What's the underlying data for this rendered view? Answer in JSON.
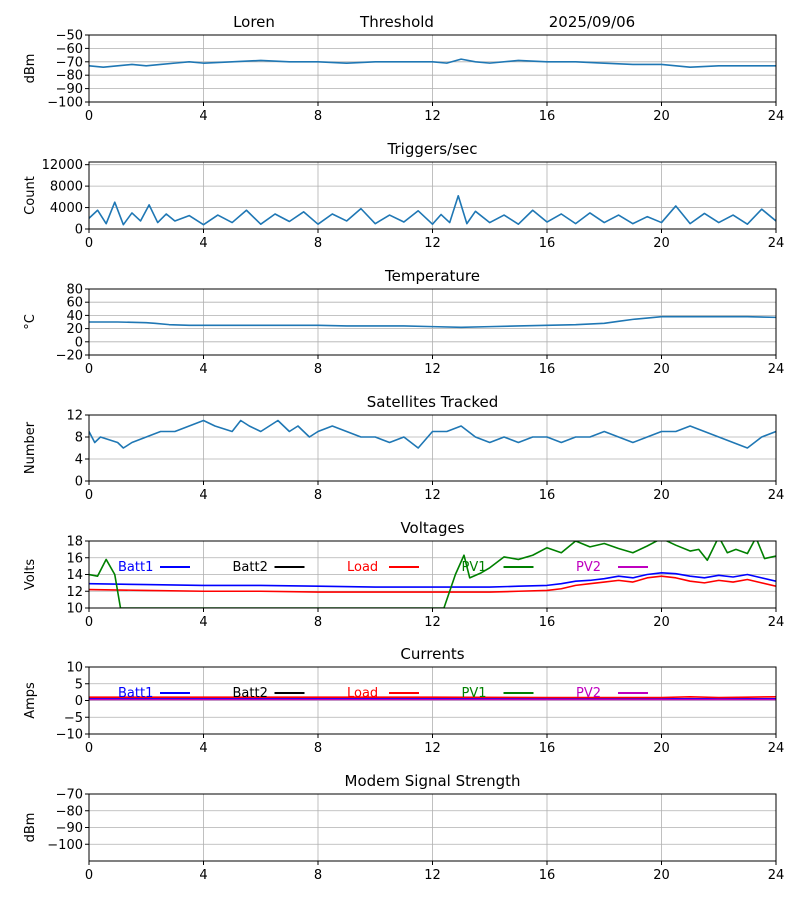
{
  "header": {
    "station": "Loren",
    "mode": "Threshold",
    "date": "2025/09/06"
  },
  "legend_labels": [
    "Batt1",
    "Batt2",
    "Load",
    "PV1",
    "PV2"
  ],
  "colors": {
    "default_line": "#1f77b4",
    "batt1": "#0000ff",
    "batt2": "#000000",
    "load": "#ff0000",
    "pv1": "#008000",
    "pv2": "#bf00bf",
    "grid": "#b0b0b0"
  },
  "chart_data": [
    {
      "id": "threshold",
      "type": "line",
      "title": "",
      "ylabel": "dBm",
      "xlim": [
        0,
        24
      ],
      "xticks": [
        "0",
        "4",
        "8",
        "12",
        "16",
        "20",
        "24"
      ],
      "ylim": [
        -100,
        -50
      ],
      "yticks": [
        -100,
        -90,
        -80,
        -70,
        -60,
        -50
      ],
      "grid": true,
      "series": [
        {
          "color": "#1f77b4",
          "x": [
            0,
            0.5,
            1,
            1.5,
            2,
            2.5,
            3,
            3.5,
            4,
            5,
            6,
            7,
            8,
            9,
            10,
            11,
            12,
            12.5,
            13,
            13.5,
            14,
            15,
            16,
            17,
            18,
            19,
            20,
            21,
            22,
            23,
            24
          ],
          "y": [
            -73,
            -74,
            -73,
            -72,
            -73,
            -72,
            -71,
            -70,
            -71,
            -70,
            -69,
            -70,
            -70,
            -71,
            -70,
            -70,
            -70,
            -71,
            -68,
            -70,
            -71,
            -69,
            -70,
            -70,
            -71,
            -72,
            -72,
            -74,
            -73,
            -73,
            -73
          ]
        }
      ]
    },
    {
      "id": "triggers",
      "type": "line",
      "title": "Triggers/sec",
      "ylabel": "Count",
      "xlim": [
        0,
        24
      ],
      "xticks": [
        "0",
        "4",
        "8",
        "12",
        "16",
        "20",
        "24"
      ],
      "ylim": [
        0,
        12500
      ],
      "yticks": [
        0,
        4000,
        8000,
        12000
      ],
      "grid": true,
      "series": [
        {
          "color": "#1f77b4",
          "x": [
            0,
            0.3,
            0.6,
            0.9,
            1.2,
            1.5,
            1.8,
            2.1,
            2.4,
            2.7,
            3,
            3.5,
            4,
            4.5,
            5,
            5.5,
            6,
            6.5,
            7,
            7.5,
            8,
            8.5,
            9,
            9.5,
            10,
            10.5,
            11,
            11.5,
            12,
            12.3,
            12.6,
            12.9,
            13.2,
            13.5,
            14,
            14.5,
            15,
            15.5,
            16,
            16.5,
            17,
            17.5,
            18,
            18.5,
            19,
            19.5,
            20,
            20.5,
            21,
            21.5,
            22,
            22.5,
            23,
            23.5,
            24
          ],
          "y": [
            2000,
            3500,
            1000,
            5000,
            800,
            3000,
            1500,
            4500,
            1200,
            2800,
            1500,
            2500,
            800,
            2600,
            1200,
            3500,
            900,
            2800,
            1400,
            3200,
            900,
            2800,
            1500,
            3800,
            1000,
            2600,
            1300,
            3400,
            900,
            2700,
            1200,
            6200,
            1000,
            3300,
            1200,
            2600,
            900,
            3500,
            1300,
            2800,
            1000,
            3000,
            1200,
            2600,
            1000,
            2300,
            1200,
            4300,
            1000,
            2900,
            1200,
            2600,
            900,
            3700,
            1500
          ]
        }
      ]
    },
    {
      "id": "temperature",
      "type": "line",
      "title": "Temperature",
      "ylabel": "°C",
      "xlim": [
        0,
        24
      ],
      "xticks": [
        "0",
        "4",
        "8",
        "12",
        "16",
        "20",
        "24"
      ],
      "ylim": [
        -20,
        80
      ],
      "yticks": [
        -20,
        0,
        20,
        40,
        60,
        80
      ],
      "grid": true,
      "series": [
        {
          "color": "#1f77b4",
          "x": [
            0,
            1,
            2,
            2.3,
            2.8,
            3.5,
            4,
            6,
            8,
            9,
            10,
            11,
            12,
            13,
            14,
            15,
            16,
            17,
            18,
            18.5,
            19,
            19.5,
            20,
            21,
            22,
            23,
            24
          ],
          "y": [
            30,
            30,
            29,
            28,
            26,
            25,
            25,
            25,
            25,
            24,
            24,
            24,
            23,
            22,
            23,
            24,
            25,
            26,
            28,
            31,
            34,
            36,
            38,
            38,
            38,
            38,
            37
          ]
        }
      ]
    },
    {
      "id": "satellites",
      "type": "line",
      "title": "Satellites Tracked",
      "ylabel": "Number",
      "xlim": [
        0,
        24
      ],
      "xticks": [
        "0",
        "4",
        "8",
        "12",
        "16",
        "20",
        "24"
      ],
      "ylim": [
        0,
        12
      ],
      "yticks": [
        0,
        4,
        8,
        12
      ],
      "grid": true,
      "series": [
        {
          "color": "#1f77b4",
          "x": [
            0,
            0.2,
            0.4,
            1,
            1.2,
            1.5,
            2,
            2.5,
            3,
            3.5,
            4,
            4.4,
            5,
            5.3,
            5.6,
            6,
            6.3,
            6.6,
            7,
            7.3,
            7.7,
            8,
            8.5,
            9,
            9.5,
            10,
            10.5,
            11,
            11.5,
            12,
            12.5,
            13,
            13.5,
            14,
            14.5,
            15,
            15.5,
            16,
            16.5,
            17,
            17.5,
            18,
            18.5,
            19,
            19.5,
            20,
            20.5,
            21,
            21.5,
            22,
            22.5,
            23,
            23.5,
            24
          ],
          "y": [
            9,
            7,
            8,
            7,
            6,
            7,
            8,
            9,
            9,
            10,
            11,
            10,
            9,
            11,
            10,
            9,
            10,
            11,
            9,
            10,
            8,
            9,
            10,
            9,
            8,
            8,
            7,
            8,
            6,
            9,
            9,
            10,
            8,
            7,
            8,
            7,
            8,
            8,
            7,
            8,
            8,
            9,
            8,
            7,
            8,
            9,
            9,
            10,
            9,
            8,
            7,
            6,
            8,
            9
          ]
        }
      ]
    },
    {
      "id": "voltages",
      "type": "line",
      "title": "Voltages",
      "ylabel": "Volts",
      "xlim": [
        0,
        24
      ],
      "xticks": [
        "0",
        "4",
        "8",
        "12",
        "16",
        "20",
        "24"
      ],
      "ylim": [
        10,
        18
      ],
      "yticks": [
        10,
        12,
        14,
        16,
        18
      ],
      "grid": true,
      "series": [
        {
          "name": "Batt1",
          "color": "#0000ff",
          "x": [
            0,
            2,
            4,
            6,
            8,
            10,
            12,
            14,
            15,
            16,
            16.5,
            17,
            17.5,
            18,
            18.5,
            19,
            19.5,
            20,
            20.5,
            21,
            21.5,
            22,
            22.5,
            23,
            23.5,
            24
          ],
          "y": [
            12.9,
            12.8,
            12.7,
            12.7,
            12.6,
            12.5,
            12.5,
            12.5,
            12.6,
            12.7,
            12.9,
            13.2,
            13.3,
            13.5,
            13.8,
            13.6,
            14.0,
            14.2,
            14.1,
            13.8,
            13.6,
            13.9,
            13.7,
            14.0,
            13.6,
            13.2
          ]
        },
        {
          "name": "Load",
          "color": "#ff0000",
          "x": [
            0,
            2,
            4,
            6,
            8,
            10,
            12,
            14,
            15,
            16,
            16.5,
            17,
            17.5,
            18,
            18.5,
            19,
            19.5,
            20,
            20.5,
            21,
            21.5,
            22,
            22.5,
            23,
            23.5,
            24
          ],
          "y": [
            12.2,
            12.1,
            12.0,
            12.0,
            11.9,
            11.9,
            11.9,
            11.9,
            12.0,
            12.1,
            12.3,
            12.7,
            12.9,
            13.1,
            13.3,
            13.1,
            13.6,
            13.8,
            13.6,
            13.2,
            13.0,
            13.3,
            13.1,
            13.4,
            13.0,
            12.6
          ]
        },
        {
          "name": "PV1",
          "color": "#008000",
          "x": [
            0,
            0.3,
            0.6,
            0.9,
            1.1,
            12.4,
            12.8,
            13.1,
            13.3,
            13.7,
            14,
            14.5,
            15,
            15.5,
            16,
            16.5,
            17,
            17.5,
            18,
            18.5,
            19,
            19.5,
            20,
            20.5,
            21,
            21.3,
            21.6,
            22,
            22.3,
            22.6,
            23,
            23.3,
            23.6,
            24
          ],
          "y": [
            14.0,
            13.8,
            15.8,
            14.0,
            10.0,
            10.0,
            14.0,
            16.3,
            13.6,
            14.2,
            14.8,
            16.1,
            15.8,
            16.3,
            17.2,
            16.6,
            18.0,
            17.3,
            17.7,
            17.1,
            16.6,
            17.4,
            18.3,
            17.5,
            16.8,
            17.0,
            15.7,
            18.5,
            16.6,
            17.0,
            16.5,
            18.4,
            15.9,
            16.2
          ]
        },
        {
          "name": "Batt2",
          "color": "#000000",
          "x": [],
          "y": []
        },
        {
          "name": "PV2",
          "color": "#bf00bf",
          "x": [],
          "y": []
        }
      ]
    },
    {
      "id": "currents",
      "type": "line",
      "title": "Currents",
      "ylabel": "Amps",
      "xlim": [
        0,
        24
      ],
      "xticks": [
        "0",
        "4",
        "8",
        "12",
        "16",
        "20",
        "24"
      ],
      "ylim": [
        -10,
        10
      ],
      "yticks": [
        -10,
        -5,
        0,
        5,
        10
      ],
      "grid": true,
      "series": [
        {
          "name": "Batt1",
          "color": "#0000ff",
          "x": [
            0,
            24
          ],
          "y": [
            0.5,
            0.5
          ]
        },
        {
          "name": "Load",
          "color": "#ff0000",
          "x": [
            0,
            4,
            8,
            12,
            16,
            20,
            21,
            22,
            23,
            24
          ],
          "y": [
            1.0,
            1.0,
            1.0,
            1.0,
            0.9,
            0.9,
            1.1,
            0.9,
            1.0,
            1.1
          ]
        },
        {
          "name": "PV2",
          "color": "#bf00bf",
          "x": [
            0,
            24
          ],
          "y": [
            0.3,
            0.3
          ]
        },
        {
          "name": "Batt2",
          "color": "#000000",
          "x": [],
          "y": []
        },
        {
          "name": "PV1",
          "color": "#008000",
          "x": [],
          "y": []
        }
      ]
    },
    {
      "id": "modem",
      "type": "line",
      "title": "Modem Signal Strength",
      "ylabel": "dBm",
      "xlim": [
        0,
        24
      ],
      "xticks": [
        "0",
        "4",
        "8",
        "12",
        "16",
        "20",
        "24"
      ],
      "ylim": [
        -110,
        -70
      ],
      "yticks": [
        -100,
        -90,
        -80,
        -70
      ],
      "grid": true,
      "series": []
    }
  ]
}
